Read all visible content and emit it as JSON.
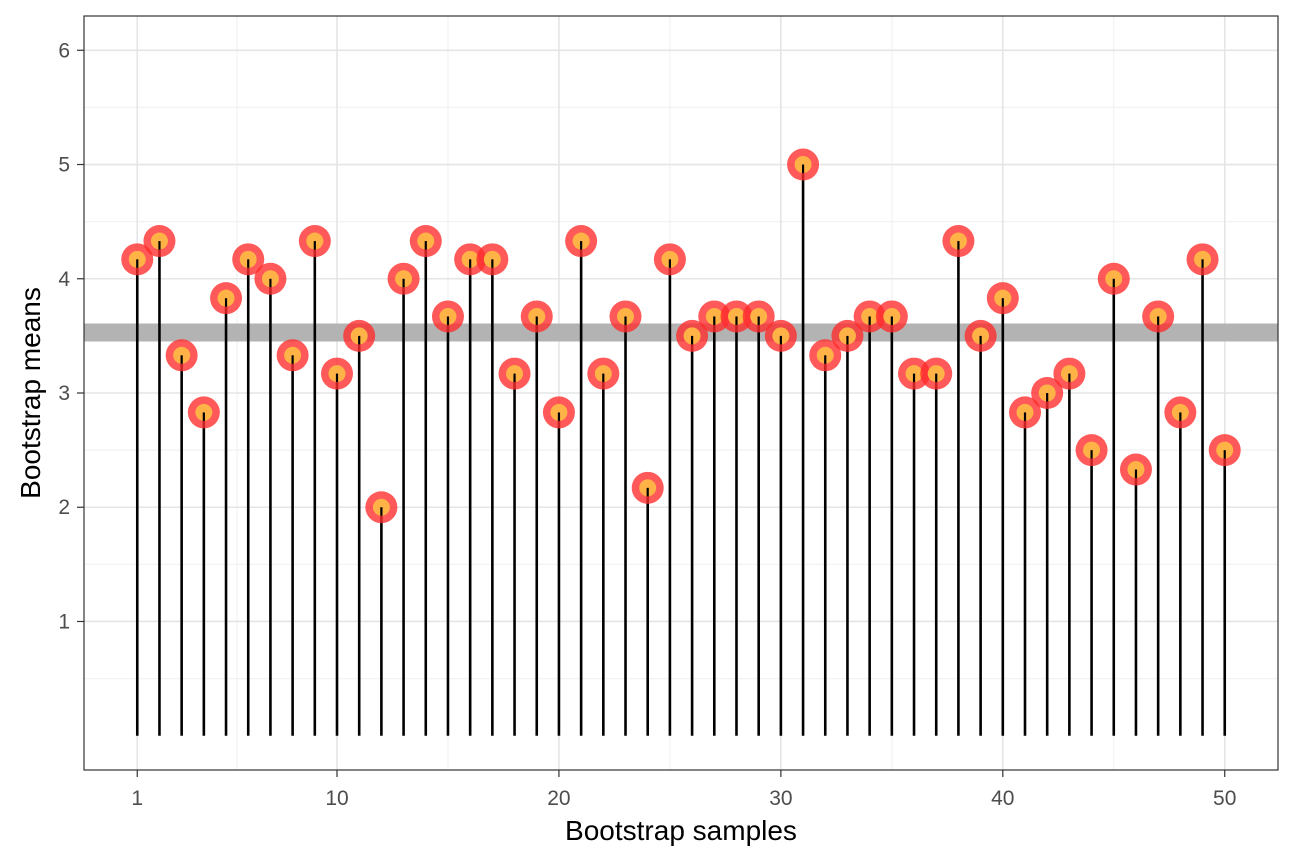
{
  "chart_data": {
    "type": "lollipop",
    "xlabel": "Bootstrap samples",
    "ylabel": "Bootstrap means",
    "xlim": [
      -1.4,
      52.4
    ],
    "ylim": [
      -0.3,
      6.3
    ],
    "x_ticks": [
      1,
      10,
      20,
      30,
      40,
      50
    ],
    "y_ticks": [
      1,
      2,
      3,
      4,
      5,
      6
    ],
    "grid": true,
    "reference_line": {
      "y": 3.53
    },
    "x": [
      1,
      2,
      3,
      4,
      5,
      6,
      7,
      8,
      9,
      10,
      11,
      12,
      13,
      14,
      15,
      16,
      17,
      18,
      19,
      20,
      21,
      22,
      23,
      24,
      25,
      26,
      27,
      28,
      29,
      30,
      31,
      32,
      33,
      34,
      35,
      36,
      37,
      38,
      39,
      40,
      41,
      42,
      43,
      44,
      45,
      46,
      47,
      48,
      49,
      50
    ],
    "values": [
      4.17,
      4.33,
      3.33,
      2.83,
      3.83,
      4.17,
      4.0,
      3.33,
      4.33,
      3.17,
      3.5,
      2.0,
      4.0,
      4.33,
      3.67,
      4.17,
      4.17,
      3.17,
      3.67,
      2.83,
      4.33,
      3.17,
      3.67,
      2.17,
      4.17,
      3.5,
      3.67,
      3.67,
      3.67,
      3.5,
      5.0,
      3.33,
      3.5,
      3.67,
      3.67,
      3.17,
      3.17,
      4.33,
      3.5,
      3.83,
      2.83,
      3.0,
      3.17,
      2.5,
      4.0,
      2.33,
      3.67,
      2.83,
      4.17,
      2.5
    ],
    "colors": {
      "stem": "#000000",
      "point_outer": "#ff2a2a",
      "point_inner": "#ffb347",
      "reference_line": "#b3b3b3",
      "grid_major": "#e5e5e5",
      "grid_minor": "#f2f2f2",
      "panel_border": "#333333"
    }
  }
}
